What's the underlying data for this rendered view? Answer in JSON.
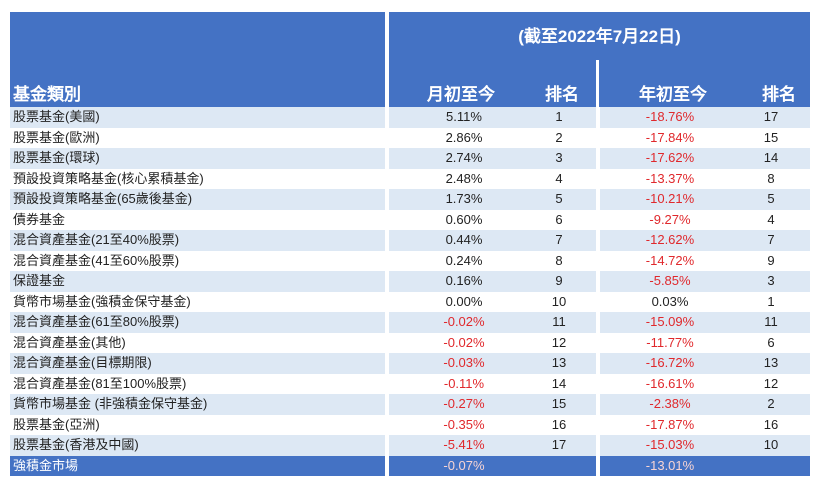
{
  "header": {
    "date_label": "(截至2022年7月22日)",
    "category_label": "基金類別",
    "mtd_label": "月初至今",
    "rank_label_1": "排名",
    "ytd_label": "年初至今",
    "rank_label_2": "排名"
  },
  "colors": {
    "header_bg": "#4472c4",
    "row_alt": "#dde8f4",
    "negative": "#e0282c"
  },
  "rows": [
    {
      "name": "股票基金(美國)",
      "mtd": "5.11%",
      "mtd_rank": "1",
      "ytd": "-18.76%",
      "ytd_rank": "17"
    },
    {
      "name": "股票基金(歐洲)",
      "mtd": "2.86%",
      "mtd_rank": "2",
      "ytd": "-17.84%",
      "ytd_rank": "15"
    },
    {
      "name": "股票基金(環球)",
      "mtd": "2.74%",
      "mtd_rank": "3",
      "ytd": "-17.62%",
      "ytd_rank": "14"
    },
    {
      "name": "預設投資策略基金(核心累積基金)",
      "mtd": "2.48%",
      "mtd_rank": "4",
      "ytd": "-13.37%",
      "ytd_rank": "8"
    },
    {
      "name": "預設投資策略基金(65歲後基金)",
      "mtd": "1.73%",
      "mtd_rank": "5",
      "ytd": "-10.21%",
      "ytd_rank": "5"
    },
    {
      "name": "債券基金",
      "mtd": "0.60%",
      "mtd_rank": "6",
      "ytd": "-9.27%",
      "ytd_rank": "4"
    },
    {
      "name": "混合資產基金(21至40%股票)",
      "mtd": "0.44%",
      "mtd_rank": "7",
      "ytd": "-12.62%",
      "ytd_rank": "7"
    },
    {
      "name": "混合資產基金(41至60%股票)",
      "mtd": "0.24%",
      "mtd_rank": "8",
      "ytd": "-14.72%",
      "ytd_rank": "9"
    },
    {
      "name": "保證基金",
      "mtd": "0.16%",
      "mtd_rank": "9",
      "ytd": "-5.85%",
      "ytd_rank": "3"
    },
    {
      "name": "貨幣市場基金(強積金保守基金)",
      "mtd": "0.00%",
      "mtd_rank": "10",
      "ytd": "0.03%",
      "ytd_rank": "1"
    },
    {
      "name": "混合資產基金(61至80%股票)",
      "mtd": "-0.02%",
      "mtd_rank": "11",
      "ytd": "-15.09%",
      "ytd_rank": "11"
    },
    {
      "name": "混合資產基金(其他)",
      "mtd": "-0.02%",
      "mtd_rank": "12",
      "ytd": "-11.77%",
      "ytd_rank": "6"
    },
    {
      "name": "混合資產基金(目標期限)",
      "mtd": "-0.03%",
      "mtd_rank": "13",
      "ytd": "-16.72%",
      "ytd_rank": "13"
    },
    {
      "name": "混合資產基金(81至100%股票)",
      "mtd": "-0.11%",
      "mtd_rank": "14",
      "ytd": "-16.61%",
      "ytd_rank": "12"
    },
    {
      "name": "貨幣市場基金 (非強積金保守基金)",
      "mtd": "-0.27%",
      "mtd_rank": "15",
      "ytd": "-2.38%",
      "ytd_rank": "2"
    },
    {
      "name": "股票基金(亞洲)",
      "mtd": "-0.35%",
      "mtd_rank": "16",
      "ytd": "-17.87%",
      "ytd_rank": "16"
    },
    {
      "name": "股票基金(香港及中國)",
      "mtd": "-5.41%",
      "mtd_rank": "17",
      "ytd": "-15.03%",
      "ytd_rank": "10"
    }
  ],
  "total": {
    "name": "強積金市場",
    "mtd": "-0.07%",
    "ytd": "-13.01%"
  }
}
